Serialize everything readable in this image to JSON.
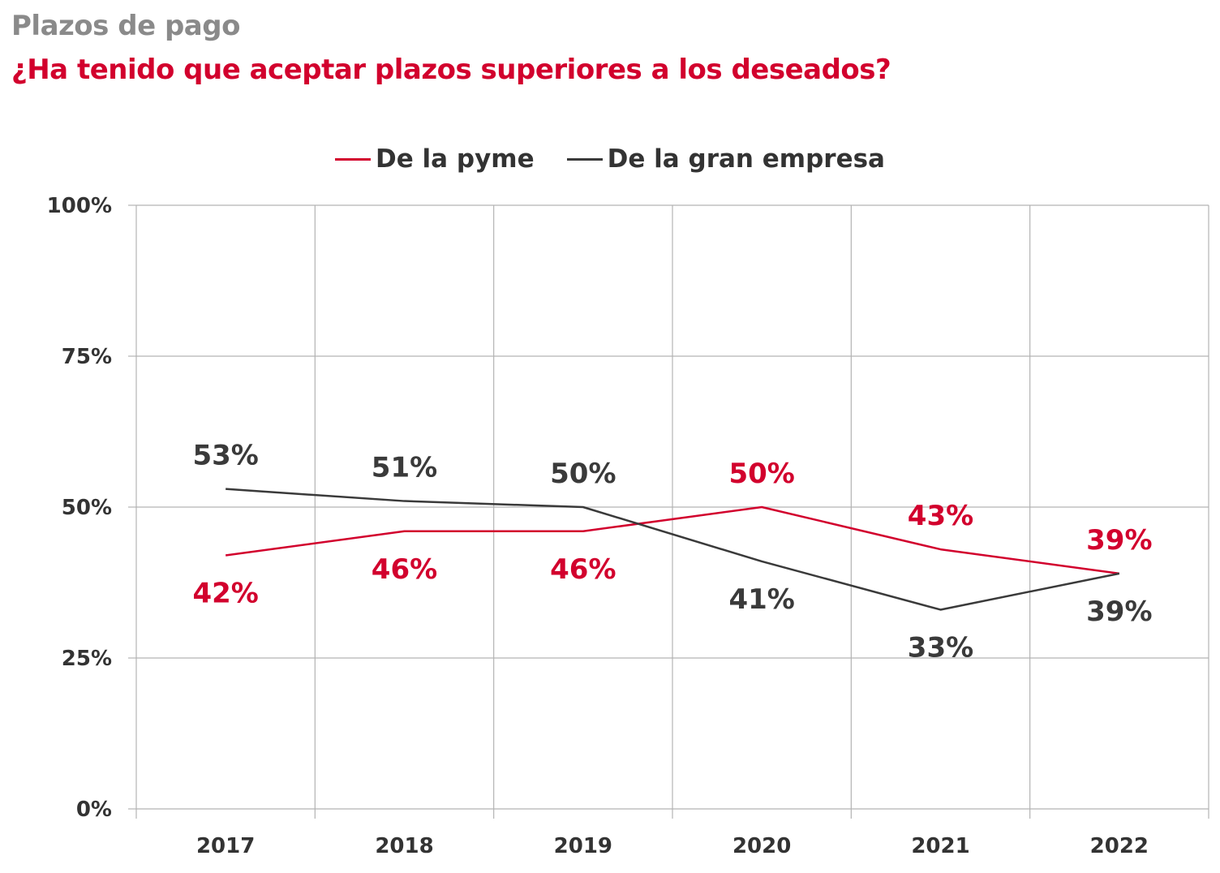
{
  "title": "Plazos de pago",
  "subtitle": "¿Ha tenido que aceptar plazos superiores a los deseados?",
  "colors": {
    "pyme": "#d2002d",
    "gran_empresa": "#3a3a3a",
    "title_gray": "#8a8a8a",
    "grid": "#b3b3b3"
  },
  "chart_data": {
    "type": "line",
    "x": [
      "2017",
      "2018",
      "2019",
      "2020",
      "2021",
      "2022"
    ],
    "series": [
      {
        "name": "De la pyme",
        "values": [
          42,
          46,
          46,
          50,
          43,
          39
        ],
        "labels": [
          "42%",
          "46%",
          "46%",
          "50%",
          "43%",
          "39%"
        ]
      },
      {
        "name": "De la gran empresa",
        "values": [
          53,
          51,
          50,
          41,
          33,
          39
        ],
        "labels": [
          "53%",
          "51%",
          "50%",
          "41%",
          "33%",
          "39%"
        ]
      }
    ],
    "ylim": [
      0,
      100
    ],
    "yticks": [
      0,
      25,
      50,
      75,
      100
    ],
    "ytick_labels": [
      "0%",
      "25%",
      "50%",
      "75%",
      "100%"
    ],
    "grid": true,
    "legend_position": "top-center"
  }
}
